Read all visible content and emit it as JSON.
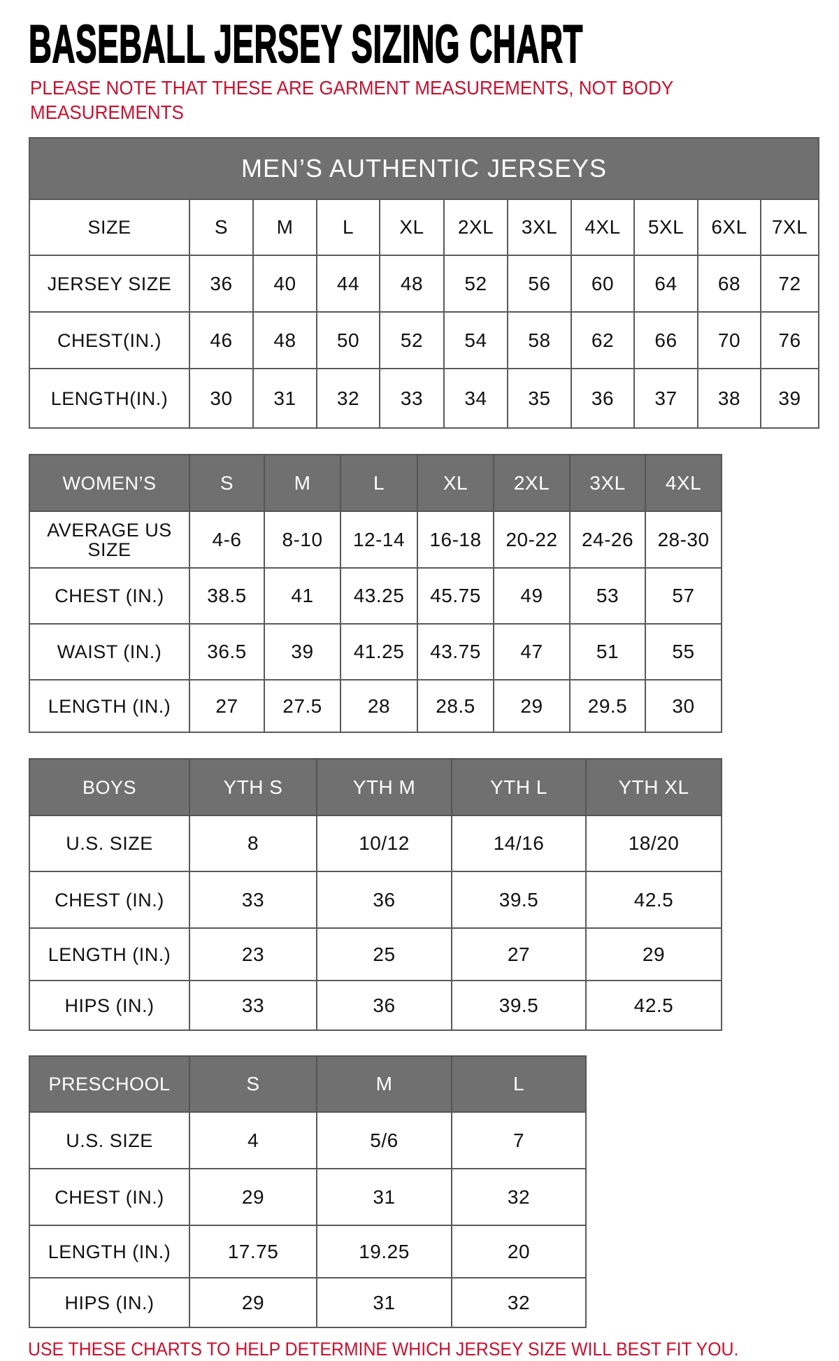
{
  "title": "BASEBALL JERSEY SIZING CHART",
  "note": "PLEASE NOTE THAT THESE ARE GARMENT MEASUREMENTS, NOT BODY MEASUREMENTS",
  "footer": "USE THESE CHARTS TO HELP DETERMINE WHICH JERSEY SIZE WILL BEST FIT YOU.",
  "colors": {
    "accent_red": "#c8102e",
    "header_gray": "#707070"
  },
  "tables": [
    {
      "id": "mens",
      "banner": "MEN’S AUTHENTIC JERSEYS",
      "header": [
        "SIZE",
        "S",
        "M",
        "L",
        "XL",
        "2XL",
        "3XL",
        "4XL",
        "5XL",
        "6XL",
        "7XL"
      ],
      "header_style": "white",
      "rows": [
        [
          "JERSEY SIZE",
          "36",
          "40",
          "44",
          "48",
          "52",
          "56",
          "60",
          "64",
          "68",
          "72"
        ],
        [
          "CHEST(IN.)",
          "46",
          "48",
          "50",
          "52",
          "54",
          "58",
          "62",
          "66",
          "70",
          "76"
        ],
        [
          "LENGTH(IN.)",
          "30",
          "31",
          "32",
          "33",
          "34",
          "35",
          "36",
          "37",
          "38",
          "39"
        ]
      ]
    },
    {
      "id": "womens",
      "header": [
        "WOMEN’S",
        "S",
        "M",
        "L",
        "XL",
        "2XL",
        "3XL",
        "4XL"
      ],
      "header_style": "gray",
      "rows": [
        [
          "AVERAGE US SIZE",
          "4-6",
          "8-10",
          "12-14",
          "16-18",
          "20-22",
          "24-26",
          "28-30"
        ],
        [
          "CHEST (IN.)",
          "38.5",
          "41",
          "43.25",
          "45.75",
          "49",
          "53",
          "57"
        ],
        [
          "WAIST (IN.)",
          "36.5",
          "39",
          "41.25",
          "43.75",
          "47",
          "51",
          "55"
        ],
        [
          "LENGTH (IN.)",
          "27",
          "27.5",
          "28",
          "28.5",
          "29",
          "29.5",
          "30"
        ]
      ]
    },
    {
      "id": "boys",
      "header": [
        "BOYS",
        "YTH S",
        "YTH M",
        "YTH L",
        "YTH XL"
      ],
      "header_style": "gray",
      "rows": [
        [
          "U.S. SIZE",
          "8",
          "10/12",
          "14/16",
          "18/20"
        ],
        [
          "CHEST (IN.)",
          "33",
          "36",
          "39.5",
          "42.5"
        ],
        [
          "LENGTH (IN.)",
          "23",
          "25",
          "27",
          "29"
        ],
        [
          "HIPS (IN.)",
          "33",
          "36",
          "39.5",
          "42.5"
        ]
      ]
    },
    {
      "id": "preschool",
      "header": [
        "PRESCHOOL",
        "S",
        "M",
        "L"
      ],
      "header_style": "gray",
      "rows": [
        [
          "U.S. SIZE",
          "4",
          "5/6",
          "7"
        ],
        [
          "CHEST (IN.)",
          "29",
          "31",
          "32"
        ],
        [
          "LENGTH (IN.)",
          "17.75",
          "19.25",
          "20"
        ],
        [
          "HIPS (IN.)",
          "29",
          "31",
          "32"
        ]
      ]
    }
  ]
}
